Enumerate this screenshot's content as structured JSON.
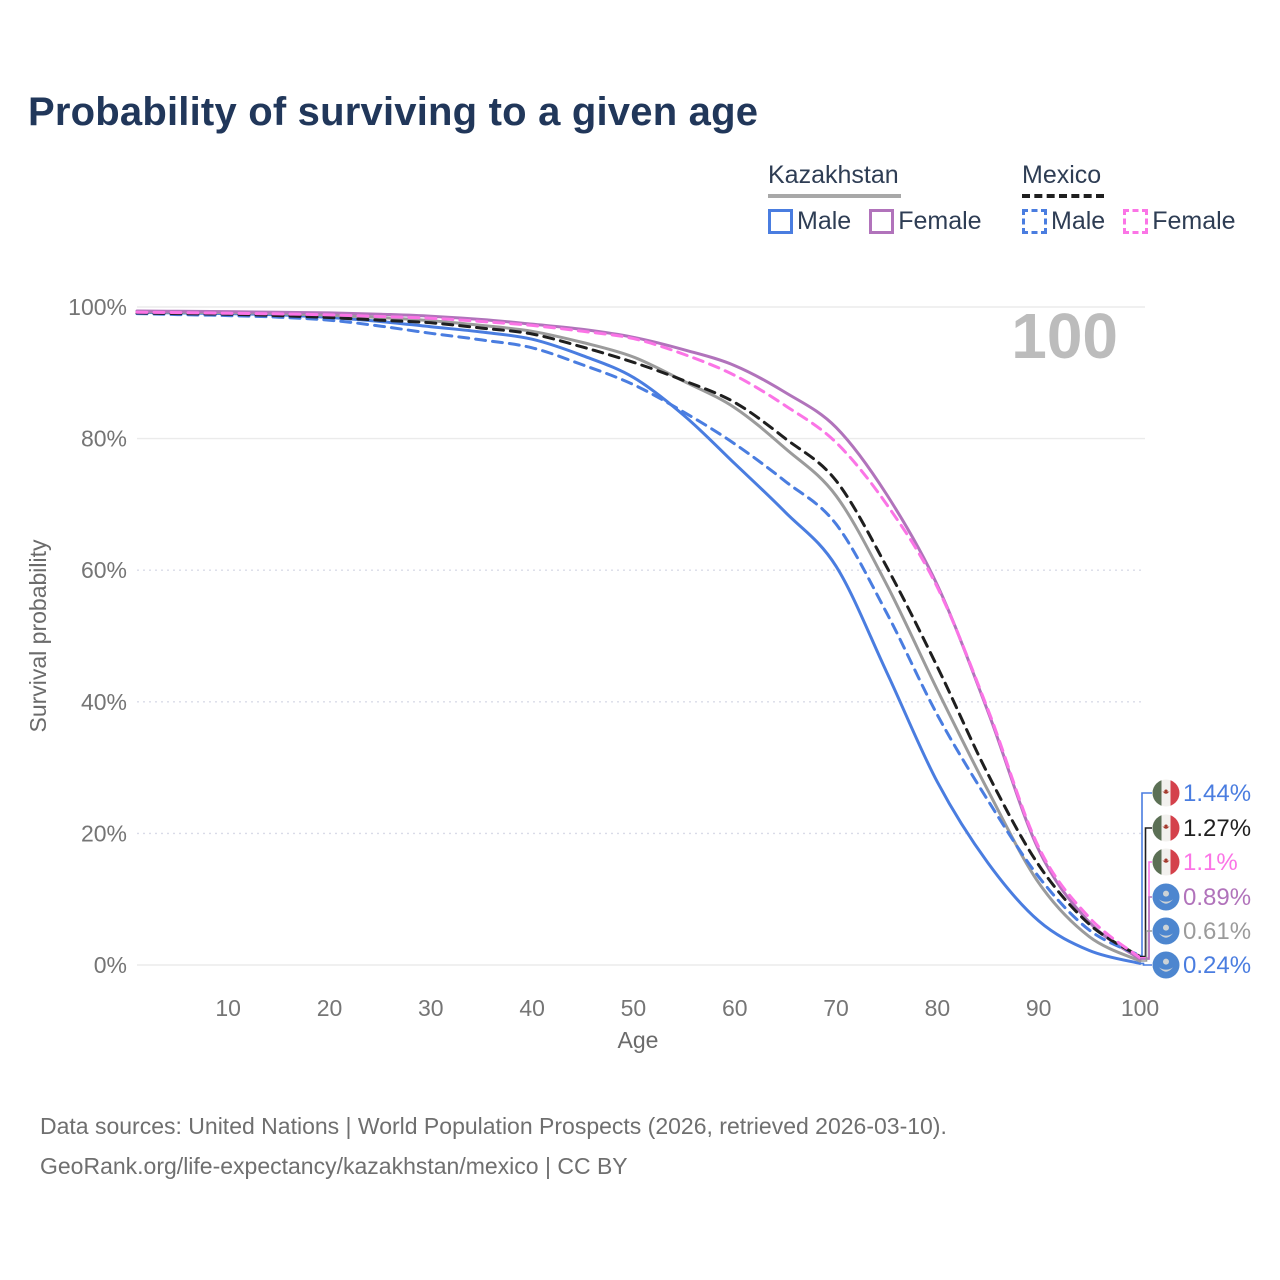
{
  "title": "Probability of surviving to a given age",
  "watermark": "100",
  "legend": {
    "groups": [
      {
        "country": "Kazakhstan",
        "line_style": "solid",
        "underline_color": "#a8a8a8",
        "underline_width": 133,
        "items": [
          {
            "label": "Male",
            "color": "#4a7de0",
            "dash": false
          },
          {
            "label": "Female",
            "color": "#b173bb",
            "dash": false
          }
        ]
      },
      {
        "country": "Mexico",
        "line_style": "dashed",
        "underline_color": "#1f1f1f",
        "underline_width": 82,
        "items": [
          {
            "label": "Male",
            "color": "#4a7de0",
            "dash": true
          },
          {
            "label": "Female",
            "color": "#fb74e6",
            "dash": true
          }
        ]
      }
    ]
  },
  "chart_data": {
    "type": "line",
    "title": "Probability of surviving to a given age",
    "xlabel": "Age",
    "ylabel": "Survival probability",
    "xlim": [
      1,
      100
    ],
    "ylim": [
      0,
      100
    ],
    "x_ticks": [
      10,
      20,
      30,
      40,
      50,
      60,
      70,
      80,
      90,
      100
    ],
    "y_ticks_percent": [
      0,
      20,
      40,
      60,
      80,
      100
    ],
    "grid": "horizontal-only",
    "legend_position": "top-right",
    "x": [
      1,
      5,
      10,
      15,
      20,
      25,
      30,
      35,
      40,
      45,
      50,
      55,
      60,
      65,
      70,
      75,
      80,
      85,
      90,
      95,
      100
    ],
    "series": [
      {
        "name": "Kazakhstan Male",
        "country": "Kazakhstan",
        "sex": "male",
        "color": "#4a7de0",
        "dash": false,
        "flag": "kazakhstan-flag",
        "end_label": "0.24%",
        "values": [
          99.2,
          99.1,
          99.0,
          98.8,
          98.4,
          97.8,
          97.0,
          96.2,
          95.1,
          92.6,
          89.3,
          83.5,
          76.2,
          68.8,
          60.6,
          44.5,
          27.8,
          15.5,
          6.7,
          2.2,
          0.24
        ]
      },
      {
        "name": "Kazakhstan Total",
        "country": "Kazakhstan",
        "sex": "both",
        "color": "#9b9b9b",
        "dash": false,
        "flag": "kazakhstan-flag",
        "end_label": "0.61%",
        "values": [
          99.3,
          99.2,
          99.15,
          99.0,
          98.75,
          98.4,
          97.9,
          97.2,
          96.3,
          94.6,
          92.4,
          88.7,
          84.7,
          78.5,
          71.3,
          57.8,
          41.8,
          26.5,
          12.5,
          4.3,
          0.61
        ]
      },
      {
        "name": "Kazakhstan Female",
        "country": "Kazakhstan",
        "sex": "female",
        "color": "#b173bb",
        "dash": false,
        "flag": "kazakhstan-flag",
        "end_label": "0.89%",
        "values": [
          99.4,
          99.35,
          99.3,
          99.2,
          99.1,
          98.9,
          98.6,
          98.1,
          97.4,
          96.6,
          95.4,
          93.5,
          91.1,
          87.0,
          81.7,
          71.5,
          57.7,
          38.5,
          17.5,
          6.5,
          0.89
        ]
      },
      {
        "name": "Mexico Male",
        "country": "Mexico",
        "sex": "male",
        "color": "#4a7de0",
        "dash": true,
        "flag": "mexico-flag",
        "end_label": "1.44%",
        "values": [
          99.0,
          98.85,
          98.7,
          98.45,
          98.0,
          97.1,
          96.0,
          95.0,
          93.8,
          91.2,
          88.2,
          84.0,
          79.2,
          73.5,
          67.0,
          53.5,
          38.0,
          25.0,
          13.4,
          5.3,
          1.44
        ]
      },
      {
        "name": "Mexico Total",
        "country": "Mexico",
        "sex": "both",
        "color": "#1f1f1f",
        "dash": true,
        "flag": "mexico-flag",
        "end_label": "1.27%",
        "values": [
          99.1,
          99.0,
          98.9,
          98.7,
          98.4,
          98.0,
          97.6,
          96.8,
          95.9,
          93.9,
          91.6,
          88.8,
          85.5,
          80.0,
          73.6,
          60.5,
          45.3,
          29.0,
          15.2,
          6.2,
          1.27
        ]
      },
      {
        "name": "Mexico Female",
        "country": "Mexico",
        "sex": "female",
        "color": "#fb74e6",
        "dash": true,
        "flag": "mexico-flag",
        "end_label": "1.1%",
        "values": [
          99.2,
          99.15,
          99.05,
          98.95,
          98.8,
          98.55,
          98.3,
          97.8,
          97.2,
          96.3,
          95.2,
          92.8,
          89.6,
          85.0,
          79.4,
          70.0,
          57.4,
          38.8,
          17.9,
          7.2,
          1.1
        ]
      }
    ],
    "end_labels_order_top_to_bottom": [
      "1.44%",
      "1.27%",
      "1.1%",
      "0.89%",
      "0.61%",
      "0.24%"
    ]
  },
  "footer": {
    "line1": "Data sources: United Nations | World Population Prospects (2026, retrieved 2026-03-10).",
    "line2": "GeoRank.org/life-expectancy/kazakhstan/mexico | CC BY"
  }
}
